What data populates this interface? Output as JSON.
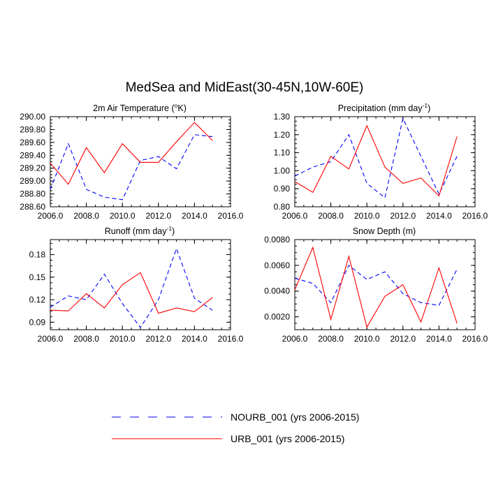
{
  "figure_title": "MedSea and MidEast(30-45N,10W-60E)",
  "chart_data": [
    {
      "type": "line",
      "title": "2m Air Temperature (",
      "title_sup": "o",
      "title_suffix": "K)",
      "x": [
        2006,
        2007,
        2008,
        2009,
        2010,
        2011,
        2012,
        2013,
        2014,
        2015
      ],
      "xlim": [
        2006,
        2016
      ],
      "xticks": [
        2006,
        2008,
        2010,
        2012,
        2014,
        2016
      ],
      "xtick_labels": [
        "2006.0",
        "2008.0",
        "2010.0",
        "2012.0",
        "2014.0",
        "2016.0"
      ],
      "ylim": [
        288.6,
        290.0
      ],
      "yticks": [
        288.6,
        288.8,
        289.0,
        289.2,
        289.4,
        289.6,
        289.8,
        290.0
      ],
      "ytick_labels": [
        "288.60",
        "288.80",
        "289.00",
        "289.20",
        "289.40",
        "289.60",
        "289.80",
        "290.00"
      ],
      "series": [
        {
          "name": "NOURB_001 (yrs 2006-2015)",
          "style": "dashed",
          "color": "#0000ff",
          "values": [
            288.87,
            289.58,
            288.87,
            288.75,
            288.71,
            289.32,
            289.38,
            289.19,
            289.72,
            289.69
          ]
        },
        {
          "name": "URB_001 (yrs 2006-2015)",
          "style": "solid",
          "color": "#ff0000",
          "values": [
            289.28,
            288.95,
            289.52,
            289.13,
            289.58,
            289.29,
            289.29,
            289.61,
            289.91,
            289.63
          ]
        }
      ]
    },
    {
      "type": "line",
      "title": "Precipitation (mm day",
      "title_sup": "-1",
      "title_suffix": ")",
      "x": [
        2006,
        2007,
        2008,
        2009,
        2010,
        2011,
        2012,
        2013,
        2014,
        2015
      ],
      "xlim": [
        2006,
        2016
      ],
      "xticks": [
        2006,
        2008,
        2010,
        2012,
        2014,
        2016
      ],
      "xtick_labels": [
        "2006.0",
        "2008.0",
        "2010.0",
        "2012.0",
        "2014.0",
        "2016.0"
      ],
      "ylim": [
        0.8,
        1.3
      ],
      "yticks": [
        0.8,
        0.9,
        1.0,
        1.1,
        1.2,
        1.3
      ],
      "ytick_labels": [
        "0.80",
        "0.90",
        "1.00",
        "1.10",
        "1.20",
        "1.30"
      ],
      "series": [
        {
          "name": "NOURB_001 (yrs 2006-2015)",
          "style": "dashed",
          "color": "#0000ff",
          "values": [
            0.97,
            1.02,
            1.05,
            1.2,
            0.93,
            0.85,
            1.29,
            1.08,
            0.87,
            1.08
          ]
        },
        {
          "name": "URB_001 (yrs 2006-2015)",
          "style": "solid",
          "color": "#ff0000",
          "values": [
            0.94,
            0.88,
            1.08,
            1.01,
            1.25,
            1.02,
            0.93,
            0.96,
            0.86,
            1.19
          ]
        }
      ]
    },
    {
      "type": "line",
      "title": "Runoff (mm day",
      "title_sup": "-1",
      "title_suffix": ")",
      "x": [
        2006,
        2007,
        2008,
        2009,
        2010,
        2011,
        2012,
        2013,
        2014,
        2015
      ],
      "xlim": [
        2006,
        2016
      ],
      "xticks": [
        2006,
        2008,
        2010,
        2012,
        2014,
        2016
      ],
      "xtick_labels": [
        "2006.0",
        "2008.0",
        "2010.0",
        "2012.0",
        "2014.0",
        "2016.0"
      ],
      "ylim": [
        0.08,
        0.2
      ],
      "yticks": [
        0.09,
        0.12,
        0.15,
        0.18
      ],
      "ytick_labels": [
        "0.09",
        "0.12",
        "0.15",
        "0.18"
      ],
      "series": [
        {
          "name": "NOURB_001 (yrs 2006-2015)",
          "style": "dashed",
          "color": "#0000ff",
          "values": [
            0.11,
            0.125,
            0.12,
            0.154,
            0.115,
            0.083,
            0.12,
            0.188,
            0.122,
            0.106
          ]
        },
        {
          "name": "URB_001 (yrs 2006-2015)",
          "style": "solid",
          "color": "#ff0000",
          "values": [
            0.106,
            0.105,
            0.128,
            0.109,
            0.14,
            0.156,
            0.102,
            0.109,
            0.104,
            0.123
          ]
        }
      ]
    },
    {
      "type": "line",
      "title": "Snow Depth (m)",
      "title_sup": "",
      "title_suffix": "",
      "x": [
        2006,
        2007,
        2008,
        2009,
        2010,
        2011,
        2012,
        2013,
        2014,
        2015
      ],
      "xlim": [
        2006,
        2016
      ],
      "xticks": [
        2006,
        2008,
        2010,
        2012,
        2014,
        2016
      ],
      "xtick_labels": [
        "2006.0",
        "2008.0",
        "2010.0",
        "2012.0",
        "2014.0",
        "2016.0"
      ],
      "ylim": [
        0.001,
        0.008
      ],
      "yticks": [
        0.002,
        0.004,
        0.006,
        0.008
      ],
      "ytick_labels": [
        "0.0020",
        "0.0040",
        "0.0060",
        "0.0080"
      ],
      "series": [
        {
          "name": "NOURB_001 (yrs 2006-2015)",
          "style": "dashed",
          "color": "#0000ff",
          "values": [
            0.005,
            0.0046,
            0.0031,
            0.006,
            0.0049,
            0.0055,
            0.0038,
            0.0031,
            0.0029,
            0.0057
          ]
        },
        {
          "name": "URB_001 (yrs 2006-2015)",
          "style": "solid",
          "color": "#ff0000",
          "values": [
            0.0041,
            0.0074,
            0.0018,
            0.0067,
            0.0012,
            0.0036,
            0.0045,
            0.0016,
            0.0058,
            0.0015
          ]
        }
      ]
    }
  ],
  "legend": [
    {
      "label": "NOURB_001 (yrs 2006-2015)",
      "style": "dashed",
      "color": "#0000ff"
    },
    {
      "label": "URB_001 (yrs 2006-2015)",
      "style": "solid",
      "color": "#ff0000"
    }
  ]
}
